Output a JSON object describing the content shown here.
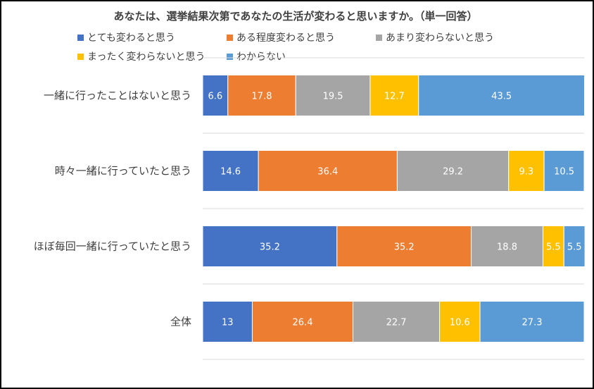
{
  "chart_data": {
    "type": "bar",
    "orientation": "horizontal",
    "stacked": true,
    "title": "あなたは、選挙結果次第であなたの生活が変わると思いますか。（単一回答）",
    "xlim": [
      0,
      100
    ],
    "grid": true,
    "legend_position": "top",
    "categories": [
      "一緒に行ったことはないと思う",
      "時々一緒に行っていたと思う",
      "ほぼ毎回一緒に行っていたと思う",
      "全体"
    ],
    "series": [
      {
        "name": "とても変わると思う",
        "color": "#4472C4",
        "values": [
          6.6,
          14.6,
          35.2,
          13
        ]
      },
      {
        "name": "ある程度変わると思う",
        "color": "#ED7D31",
        "values": [
          17.8,
          36.4,
          35.2,
          26.4
        ]
      },
      {
        "name": "あまり変わらないと思う",
        "color": "#A5A5A5",
        "values": [
          19.5,
          29.2,
          18.8,
          22.7
        ]
      },
      {
        "name": "まったく変わらないと思う",
        "color": "#FFC000",
        "values": [
          12.7,
          9.3,
          5.5,
          10.6
        ]
      },
      {
        "name": "わからない",
        "color": "#5B9BD5",
        "values": [
          43.5,
          10.5,
          5.5,
          27.3
        ]
      }
    ]
  }
}
